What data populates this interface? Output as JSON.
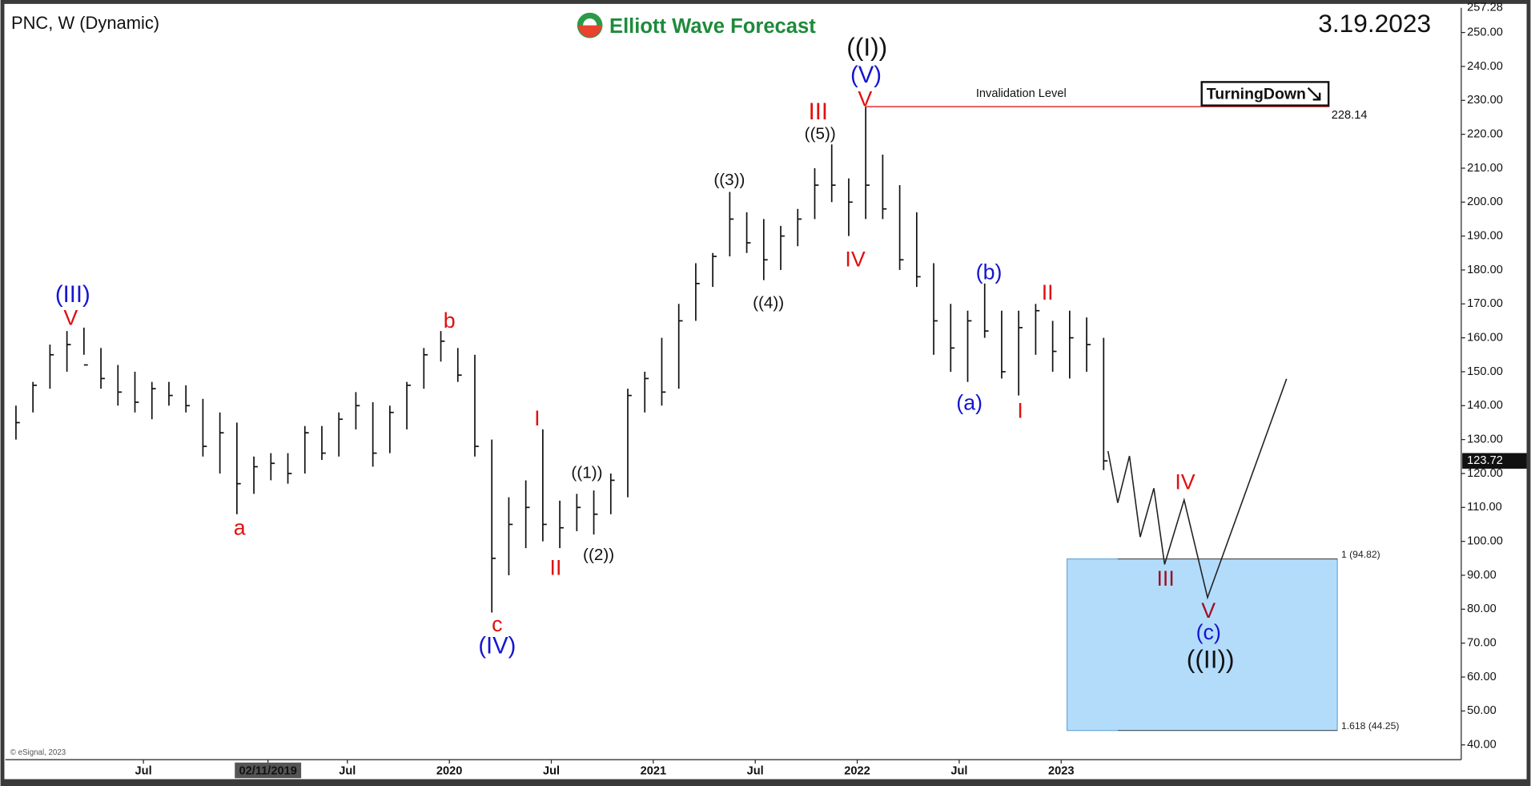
{
  "chart_data": {
    "type": "ohlc",
    "title": "PNC, W (Dynamic)",
    "brand": "Elliott Wave Forecast",
    "date": "3.19.2023",
    "badge": "TurningDown",
    "credit": "© eSignal, 2023",
    "color": "#111111",
    "grid": false,
    "x": [
      "2017-11",
      "2017-12",
      "2018-01",
      "2018-02",
      "2018-03",
      "2018-04",
      "2018-05",
      "2018-06",
      "2018-07",
      "2018-08",
      "2018-09",
      "2018-10",
      "2018-11",
      "2018-12",
      "2019-01",
      "2019-02",
      "2019-03",
      "2019-04",
      "2019-05",
      "2019-06",
      "2019-07",
      "2019-08",
      "2019-09",
      "2019-10",
      "2019-11",
      "2019-12",
      "2020-01",
      "2020-02",
      "2020-03",
      "2020-04",
      "2020-05",
      "2020-06",
      "2020-07",
      "2020-08",
      "2020-09",
      "2020-10",
      "2020-11",
      "2020-12",
      "2021-01",
      "2021-02",
      "2021-03",
      "2021-04",
      "2021-05",
      "2021-06",
      "2021-07",
      "2021-08",
      "2021-09",
      "2021-10",
      "2021-11",
      "2021-12",
      "2022-01",
      "2022-02",
      "2022-03",
      "2022-04",
      "2022-05",
      "2022-06",
      "2022-07",
      "2022-08",
      "2022-09",
      "2022-10",
      "2022-11",
      "2022-12",
      "2023-01",
      "2023-02",
      "2023-03"
    ],
    "low": [
      130,
      138,
      145,
      150,
      155,
      145,
      140,
      138,
      136,
      140,
      138,
      125,
      120,
      108,
      114,
      118,
      117,
      120,
      124,
      125,
      133,
      122,
      126,
      133,
      145,
      153,
      147,
      125,
      79,
      90,
      98,
      100,
      98,
      103,
      102,
      108,
      113,
      138,
      140,
      145,
      165,
      175,
      184,
      185,
      177,
      180,
      187,
      195,
      200,
      190,
      195,
      195,
      180,
      175,
      155,
      150,
      147,
      160,
      148,
      143,
      155,
      150,
      148,
      150,
      121
    ],
    "high": [
      140,
      147,
      158,
      162,
      163,
      157,
      152,
      150,
      147,
      147,
      146,
      142,
      138,
      135,
      125,
      126,
      126,
      134,
      134,
      138,
      144,
      141,
      140,
      147,
      157,
      162,
      157,
      155,
      130,
      113,
      118,
      133,
      112,
      114,
      115,
      120,
      145,
      150,
      160,
      170,
      182,
      185,
      203,
      197,
      195,
      193,
      198,
      210,
      217,
      207,
      228.14,
      214,
      205,
      197,
      182,
      170,
      168,
      176,
      168,
      168,
      170,
      165,
      168,
      166,
      160
    ],
    "close": [
      135,
      146,
      155,
      158,
      152,
      148,
      144,
      141,
      145,
      143,
      140,
      128,
      132,
      117,
      122,
      123,
      120,
      132,
      126,
      136,
      140,
      126,
      138,
      146,
      155,
      159,
      149,
      128,
      95,
      105,
      110,
      105,
      104,
      110,
      108,
      118,
      143,
      148,
      144,
      165,
      176,
      184,
      195,
      188,
      183,
      190,
      195,
      205,
      205,
      200,
      205,
      198,
      183,
      178,
      165,
      157,
      165,
      162,
      150,
      163,
      168,
      156,
      160,
      158,
      123.72
    ],
    "ylim": [
      35.65,
      257.28
    ],
    "yticks": [
      {
        "value": 40,
        "label": "40.00"
      },
      {
        "value": 50,
        "label": "50.00"
      },
      {
        "value": 60,
        "label": "60.00"
      },
      {
        "value": 70,
        "label": "70.00"
      },
      {
        "value": 80,
        "label": "80.00"
      },
      {
        "value": 90,
        "label": "90.00"
      },
      {
        "value": 100,
        "label": "100.00"
      },
      {
        "value": 110,
        "label": "110.00"
      },
      {
        "value": 120,
        "label": "120.00"
      },
      {
        "value": 130,
        "label": "130.00"
      },
      {
        "value": 140,
        "label": "140.00"
      },
      {
        "value": 150,
        "label": "150.00"
      },
      {
        "value": 160,
        "label": "160.00"
      },
      {
        "value": 170,
        "label": "170.00"
      },
      {
        "value": 180,
        "label": "180.00"
      },
      {
        "value": 190,
        "label": "190.00"
      },
      {
        "value": 200,
        "label": "200.00"
      },
      {
        "value": 210,
        "label": "210.00"
      },
      {
        "value": 220,
        "label": "220.00"
      },
      {
        "value": 230,
        "label": "230.00"
      },
      {
        "value": 240,
        "label": "240.00"
      },
      {
        "value": 250,
        "label": "250.00"
      }
    ],
    "xticks": [
      {
        "value": "2018-07",
        "label": "Jul"
      },
      {
        "value": "2019-02-11",
        "label": "02/11/2019"
      },
      {
        "value": "2019-07",
        "label": "Jul"
      },
      {
        "value": "2020-01",
        "label": "2020"
      },
      {
        "value": "2020-07",
        "label": "Jul"
      },
      {
        "value": "2021-01",
        "label": "2021"
      },
      {
        "value": "2021-07",
        "label": "Jul"
      },
      {
        "value": "2022-01",
        "label": "2022"
      },
      {
        "value": "2022-07",
        "label": "Jul"
      },
      {
        "value": "2023-01",
        "label": "2023"
      }
    ],
    "last_price": 123.72,
    "invalidation": {
      "label": "Invalidation Level",
      "value": 228.14,
      "color": "#e03030"
    },
    "fib_levels": [
      {
        "value": 94.82,
        "label": "1 (94.82)"
      },
      {
        "value": 44.25,
        "label": "1.618 (44.25)"
      }
    ],
    "target_color": "#b3dcfb",
    "wave_labels": [
      {
        "text": "(III)",
        "color": "#1515d0"
      },
      {
        "text": "V",
        "color": "#e01010"
      },
      {
        "text": "a",
        "color": "#e01010"
      },
      {
        "text": "b",
        "color": "#e01010"
      },
      {
        "text": "c",
        "color": "#e01010"
      },
      {
        "text": "(IV)",
        "color": "#1515d0"
      },
      {
        "text": "I",
        "color": "#e01010"
      },
      {
        "text": "II",
        "color": "#e01010"
      },
      {
        "text": "((1))",
        "color": "#111111"
      },
      {
        "text": "((2))",
        "color": "#111111"
      },
      {
        "text": "((3))",
        "color": "#111111"
      },
      {
        "text": "((4))",
        "color": "#111111"
      },
      {
        "text": "((5))",
        "color": "#111111"
      },
      {
        "text": "III",
        "color": "#e01010"
      },
      {
        "text": "IV",
        "color": "#e01010"
      },
      {
        "text": "V",
        "color": "#e01010"
      },
      {
        "text": "(V)",
        "color": "#1515d0"
      },
      {
        "text": "((I))",
        "color": "#111111"
      },
      {
        "text": "(a)",
        "color": "#1515d0"
      },
      {
        "text": "(b)",
        "color": "#1515d0"
      },
      {
        "text": "I",
        "color": "#e01010"
      },
      {
        "text": "II",
        "color": "#e01010"
      },
      {
        "text": "III",
        "color": "#a01020"
      },
      {
        "text": "IV",
        "color": "#e01010"
      },
      {
        "text": "V",
        "color": "#a01020"
      },
      {
        "text": "(c)",
        "color": "#1515d0"
      },
      {
        "text": "((II))",
        "color": "#111111"
      }
    ]
  }
}
